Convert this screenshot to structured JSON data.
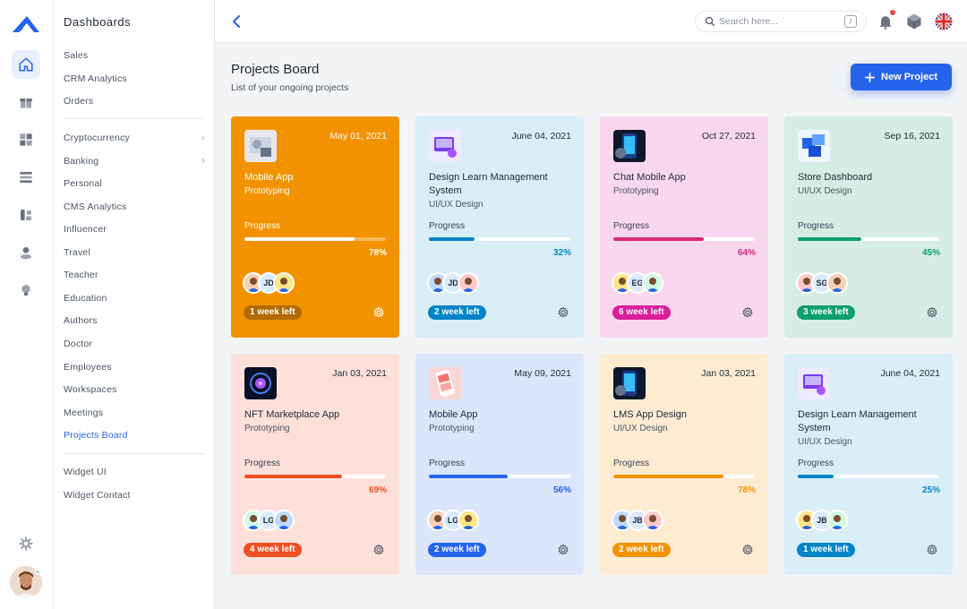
{
  "sidebar": {
    "title": "Dashboards",
    "group1": [
      "Sales",
      "CRM Analytics",
      "Orders"
    ],
    "group2": [
      {
        "label": "Cryptocurrency",
        "chevron": true
      },
      {
        "label": "Banking",
        "chevron": true
      },
      {
        "label": "Personal"
      },
      {
        "label": "CMS Analytics"
      },
      {
        "label": "Influencer"
      },
      {
        "label": "Travel"
      },
      {
        "label": "Teacher"
      },
      {
        "label": "Education"
      },
      {
        "label": "Authors"
      },
      {
        "label": "Doctor"
      },
      {
        "label": "Employees"
      },
      {
        "label": "Workspaces"
      },
      {
        "label": "Meetings"
      },
      {
        "label": "Projects Board",
        "active": true
      }
    ],
    "group3": [
      "Widget UI",
      "Widget Contact"
    ],
    "chevron_glyph": "›"
  },
  "rail": {
    "icons": [
      "home-icon",
      "gift-icon",
      "grid-icon",
      "stack-icon",
      "apps-icon",
      "people-icon",
      "lightbulb-icon"
    ],
    "settings_icon": "settings-icon",
    "accent": "#2563eb"
  },
  "header": {
    "search_placeholder": "Search here...",
    "search_shortcut": "/",
    "icons": [
      "back-icon",
      "search-icon",
      "bell-icon",
      "cube-icon",
      "uk-flag-icon"
    ]
  },
  "page": {
    "title": "Projects Board",
    "subtitle": "List of your ongoing projects",
    "new_button": "New Project"
  },
  "progress_label": "Progress",
  "projects": [
    {
      "name": "Mobile App",
      "category": "Prototyping",
      "date": "May 01, 2021",
      "progress": 78,
      "progress_text": "78%",
      "deadline": "1 week left",
      "bg": "#f39200",
      "accent": "#ffffff",
      "badge_bg": "#b26a00",
      "theme": "orange",
      "avatars": [
        "photo",
        "JD",
        "photo"
      ]
    },
    {
      "name": "Design Learn Management System",
      "category": "UI/UX Design",
      "date": "June 04, 2021",
      "progress": 32,
      "progress_text": "32%",
      "deadline": "2 week left",
      "bg": "#d9eef6",
      "accent": "#0284c7",
      "badge_bg": "#0284c7",
      "avatars": [
        "photo",
        "JD",
        "photo"
      ]
    },
    {
      "name": "Chat Mobile App",
      "category": "Prototyping",
      "date": "Oct 27, 2021",
      "progress": 64,
      "progress_text": "64%",
      "deadline": "6 week left",
      "bg": "#f9d7ef",
      "accent": "#db2777",
      "badge_bg": "#db1e9c",
      "avatars": [
        "photo",
        "EG",
        "photo"
      ]
    },
    {
      "name": "Store Dashboard",
      "category": "UI/UX Design",
      "date": "Sep 16, 2021",
      "progress": 45,
      "progress_text": "45%",
      "deadline": "3 week left",
      "bg": "#d5ede4",
      "accent": "#0e9f6e",
      "badge_bg": "#0e9f6e",
      "avatars": [
        "photo",
        "SG",
        "photo"
      ]
    },
    {
      "name": "NFT Marketplace App",
      "category": "Prototyping",
      "date": "Jan 03, 2021",
      "progress": 69,
      "progress_text": "69%",
      "deadline": "4 week left",
      "bg": "#fde0d9",
      "accent": "#f04f23",
      "badge_bg": "#f04f23",
      "avatars": [
        "photo",
        "LG",
        "photo"
      ]
    },
    {
      "name": "Mobile App",
      "category": "Prototyping",
      "date": "May 09, 2021",
      "progress": 56,
      "progress_text": "56%",
      "deadline": "2 week left",
      "bg": "#dbe6fb",
      "accent": "#2563eb",
      "badge_bg": "#2563eb",
      "avatars": [
        "photo",
        "LG",
        "photo"
      ]
    },
    {
      "name": "LMS App Design",
      "category": "UI/UX Design",
      "date": "Jan 03, 2021",
      "progress": 78,
      "progress_text": "78%",
      "deadline": "2 week left",
      "bg": "#fdebd2",
      "accent": "#f39200",
      "badge_bg": "#f39200",
      "avatars": [
        "photo",
        "JB",
        "photo"
      ]
    },
    {
      "name": "Design Learn Management System",
      "category": "UI/UX Design",
      "date": "June 04, 2021",
      "progress": 25,
      "progress_text": "25%",
      "deadline": "1 week left",
      "bg": "#d9eef6",
      "accent": "#0284c7",
      "badge_bg": "#0284c7",
      "avatars": [
        "photo",
        "JB",
        "photo"
      ]
    }
  ]
}
